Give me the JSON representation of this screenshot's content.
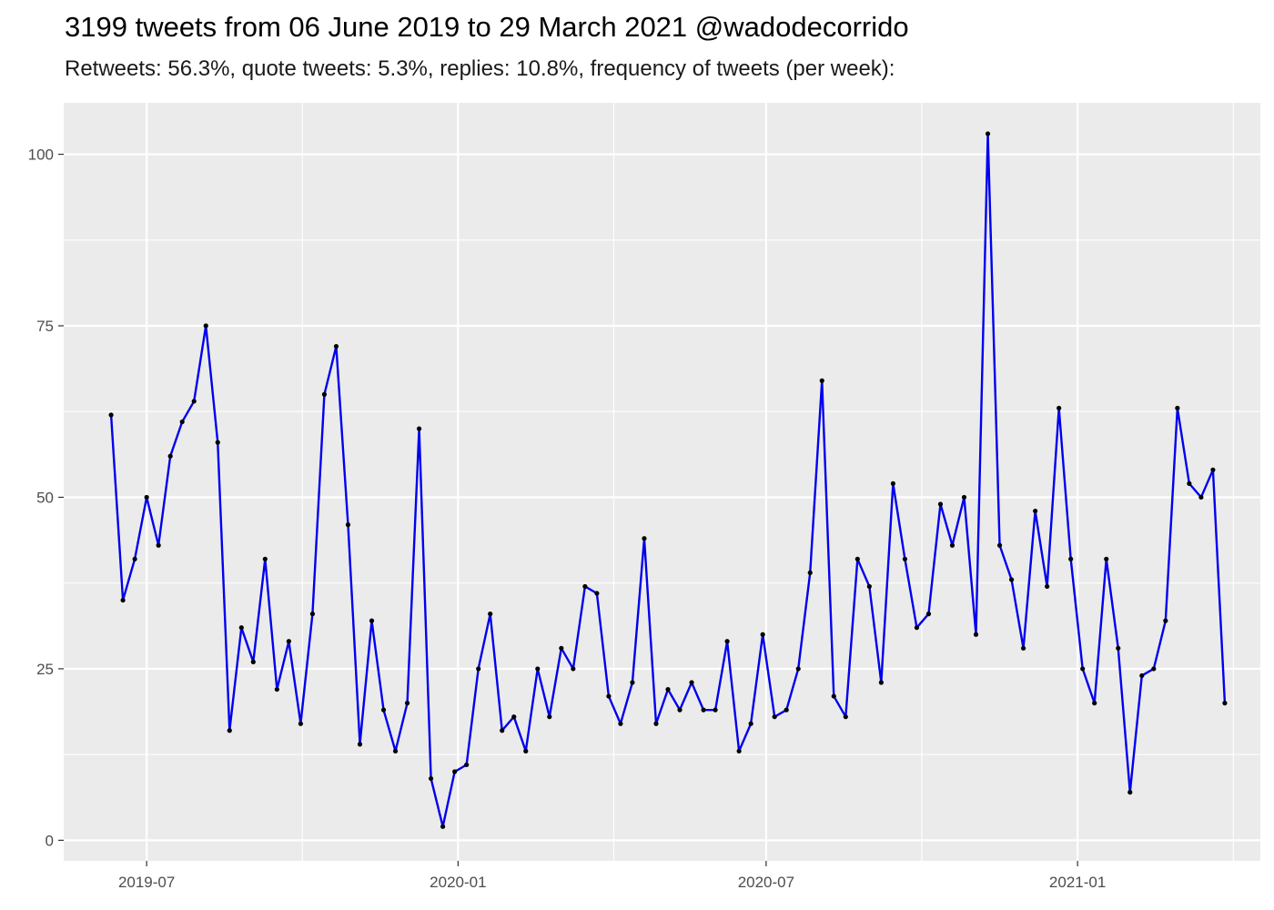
{
  "chart_data": {
    "type": "line",
    "title": "3199 tweets from 06 June 2019 to 29 March 2021 @wadodecorrido",
    "subtitle": "Retweets: 56.3%, quote tweets: 5.3%, replies: 10.8%, frequency of tweets (per week):",
    "xlabel": "",
    "ylabel": "",
    "x_ticks": [
      "2019-07",
      "2020-01",
      "2020-07",
      "2021-01"
    ],
    "y_ticks": [
      "0",
      "25",
      "50",
      "75",
      "100"
    ],
    "ylim": [
      -3,
      107.5
    ],
    "xlim": [
      "2019-05-13",
      "2021-04-19"
    ],
    "grid": true,
    "line_color": "#0000ee",
    "point_color": "#000000",
    "panel_background": "#ebebeb",
    "series": [
      {
        "x_start": "2019-06-10",
        "x_step_days": 7,
        "values": [
          62,
          35,
          41,
          50,
          43,
          56,
          61,
          64,
          75,
          58,
          16,
          31,
          26,
          41,
          22,
          29,
          17,
          33,
          65,
          72,
          46,
          14,
          32,
          19,
          13,
          20,
          60,
          9,
          2,
          10,
          11,
          25,
          33,
          16,
          18,
          13,
          25,
          18,
          28,
          25,
          37,
          36,
          21,
          17,
          23,
          44,
          17,
          22,
          19,
          23,
          19,
          19,
          29,
          13,
          17,
          30,
          18,
          19,
          25,
          39,
          67,
          21,
          18,
          41,
          37,
          23,
          52,
          41,
          31,
          33,
          49,
          43,
          50,
          30,
          103,
          43,
          38,
          28,
          48,
          37,
          63,
          41,
          25,
          20,
          41,
          28,
          7,
          24,
          25,
          32,
          63,
          52,
          50,
          54,
          20
        ]
      }
    ]
  }
}
